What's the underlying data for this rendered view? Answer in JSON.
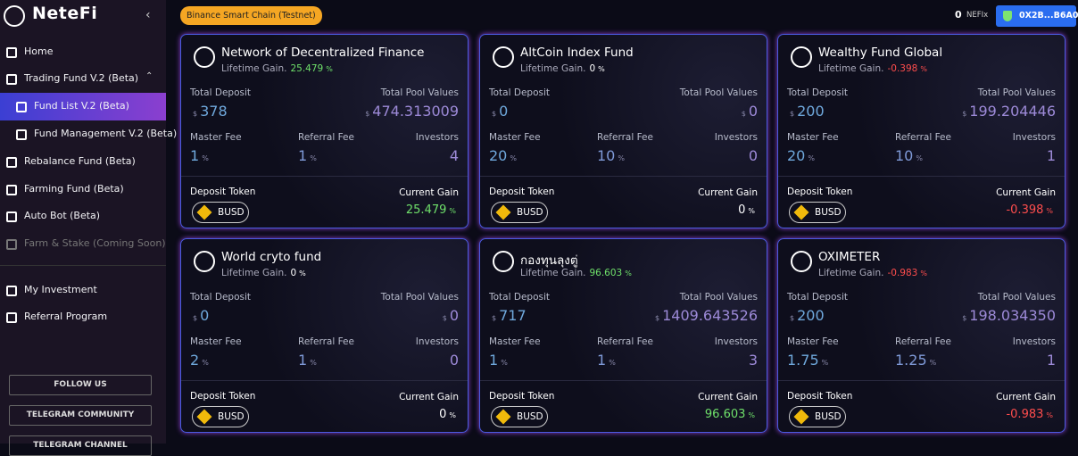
{
  "sidebar": {
    "brand": "NeteFi",
    "menu": [
      "Home",
      "Trading Fund V.2 (Beta)",
      "Fund List V.2 (Beta)",
      "Fund Management V.2 (Beta)",
      "Rebalance Fund (Beta)",
      "Farming Fund (Beta)",
      "Auto Bot (Beta)",
      "Farm & Stake (Coming Soon)",
      "My Investment",
      "Referral Program"
    ],
    "social": [
      "FOLLOW US",
      "TELEGRAM COMMUNITY",
      "TELEGRAM CHANNEL"
    ]
  },
  "topbar": {
    "network": "Binance Smart Chain (Testnet)",
    "balance": "0",
    "balance_unit": "NEFIx",
    "wallet": "0X2B...B6A0"
  },
  "card_labels": {
    "lifetime_gain": "Lifetime Gain.",
    "total_deposit": "Total Deposit",
    "total_pool_values": "Total Pool Values",
    "master_fee": "Master Fee",
    "referral_fee": "Referral Fee",
    "investors": "Investors",
    "deposit_token": "Deposit Token",
    "current_gain": "Current Gain",
    "currency": "$",
    "percent": "%"
  },
  "funds": [
    {
      "name": "Network of Decentralized Finance",
      "lifetime_gain": "25.479",
      "total_deposit": "378",
      "total_pool_values": "474.313009",
      "master_fee": "1",
      "referral_fee": "1",
      "investors": "4",
      "token": "BUSD",
      "current_gain": "25.479"
    },
    {
      "name": "AltCoin Index Fund",
      "lifetime_gain": "0",
      "total_deposit": "0",
      "total_pool_values": "0",
      "master_fee": "20",
      "referral_fee": "10",
      "investors": "0",
      "token": "BUSD",
      "current_gain": "0"
    },
    {
      "name": "Wealthy Fund Global",
      "lifetime_gain": "-0.398",
      "total_deposit": "200",
      "total_pool_values": "199.204446",
      "master_fee": "20",
      "referral_fee": "10",
      "investors": "1",
      "token": "BUSD",
      "current_gain": "-0.398"
    },
    {
      "name": "World cryto fund",
      "lifetime_gain": "0",
      "total_deposit": "0",
      "total_pool_values": "0",
      "master_fee": "2",
      "referral_fee": "1",
      "investors": "0",
      "token": "BUSD",
      "current_gain": "0"
    },
    {
      "name": "กองทุนลุงตู่",
      "lifetime_gain": "96.603",
      "total_deposit": "717",
      "total_pool_values": "1409.643526",
      "master_fee": "1",
      "referral_fee": "1",
      "investors": "3",
      "token": "BUSD",
      "current_gain": "96.603"
    },
    {
      "name": "OXIMETER",
      "lifetime_gain": "-0.983",
      "total_deposit": "200",
      "total_pool_values": "198.034350",
      "master_fee": "1.75",
      "referral_fee": "1.25",
      "investors": "1",
      "token": "BUSD",
      "current_gain": "-0.983"
    }
  ]
}
